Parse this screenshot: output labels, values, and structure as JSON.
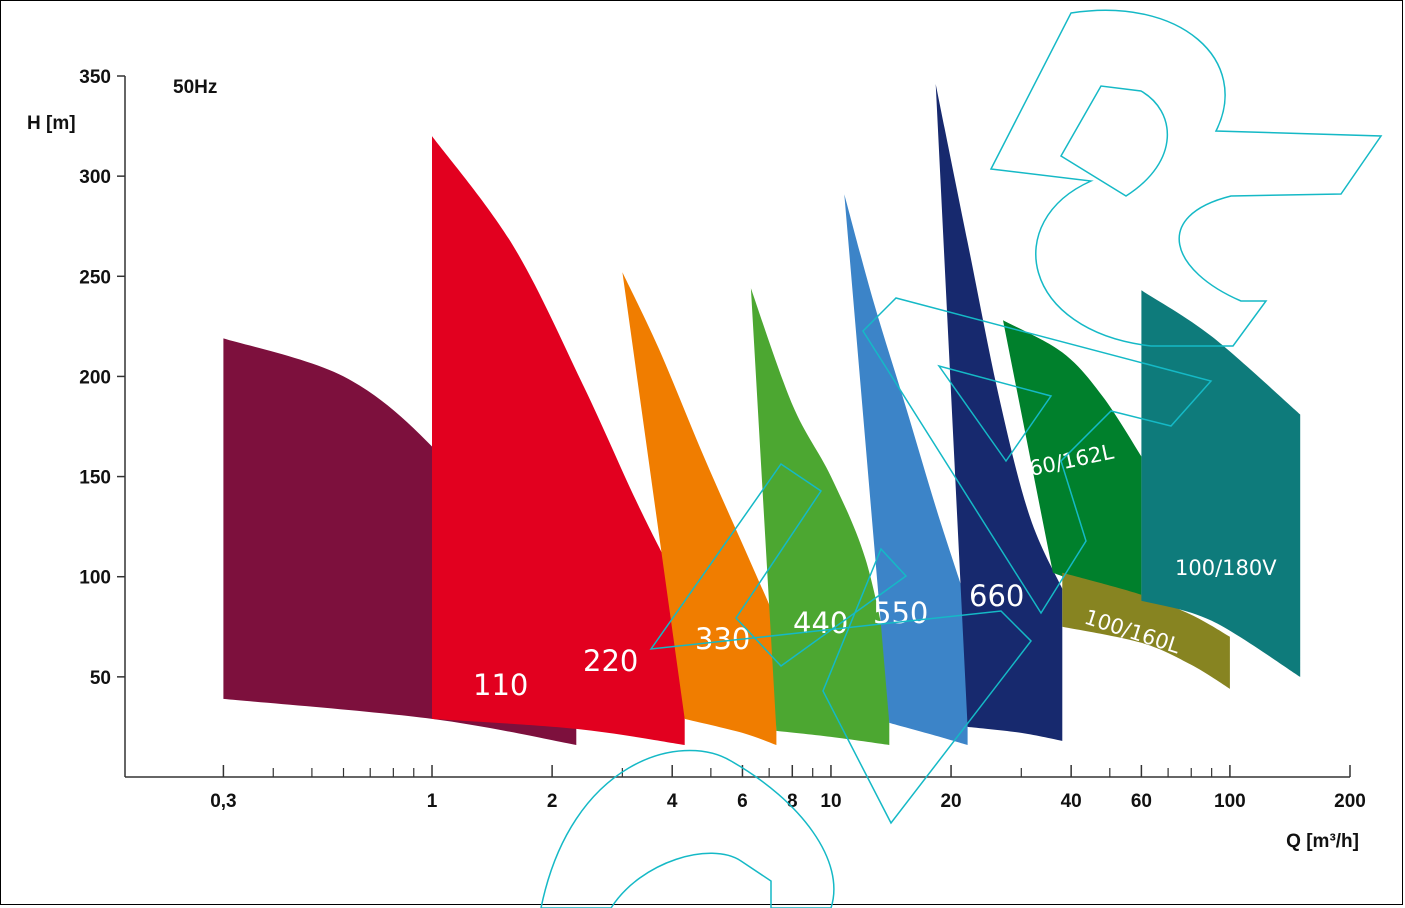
{
  "chart_data": {
    "type": "area",
    "title": "",
    "annotation": "50Hz",
    "xlabel": "Q [m³/h]",
    "ylabel": "H [m]",
    "x_scale": "log",
    "xlim": [
      0.17,
      200
    ],
    "ylim": [
      0,
      350
    ],
    "x_tick_labels": [
      {
        "value": 0.3,
        "label": "0,3"
      },
      {
        "value": 1,
        "label": "1"
      },
      {
        "value": 2,
        "label": "2"
      },
      {
        "value": 4,
        "label": "4"
      },
      {
        "value": 6,
        "label": "6"
      },
      {
        "value": 8,
        "label": "8"
      },
      {
        "value": 10,
        "label": "10"
      },
      {
        "value": 20,
        "label": "20"
      },
      {
        "value": 40,
        "label": "40"
      },
      {
        "value": 60,
        "label": "60"
      },
      {
        "value": 100,
        "label": "100"
      },
      {
        "value": 200,
        "label": "200"
      }
    ],
    "x_minor_ticks": [
      0.4,
      0.5,
      0.6,
      0.7,
      0.8,
      0.9,
      3,
      5,
      7,
      9,
      30,
      50,
      70,
      80,
      90
    ],
    "y_ticks": [
      50,
      100,
      150,
      200,
      250,
      300,
      350
    ],
    "grid": false,
    "series": [
      {
        "name": "110",
        "color": "#7d103d",
        "upper": [
          [
            0.3,
            219
          ],
          [
            0.6,
            200
          ],
          [
            1.0,
            165
          ],
          [
            1.5,
            118
          ],
          [
            2.3,
            87
          ]
        ],
        "lower": [
          [
            0.3,
            39
          ],
          [
            1.0,
            29
          ],
          [
            2.3,
            16
          ]
        ]
      },
      {
        "name": "220",
        "color": "#e2001f",
        "upper": [
          [
            1.0,
            320
          ],
          [
            1.6,
            265
          ],
          [
            2.4,
            195
          ],
          [
            3.3,
            135
          ],
          [
            4.3,
            90
          ]
        ],
        "lower": [
          [
            1.0,
            29
          ],
          [
            2.3,
            24
          ],
          [
            4.3,
            16
          ]
        ]
      },
      {
        "name": "330",
        "color": "#f07d00",
        "upper": [
          [
            3.0,
            252
          ],
          [
            3.7,
            214
          ],
          [
            4.8,
            160
          ],
          [
            6.2,
            110
          ],
          [
            7.3,
            78
          ]
        ],
        "lower": [
          [
            4.3,
            29
          ],
          [
            6.0,
            22
          ],
          [
            7.3,
            16
          ]
        ]
      },
      {
        "name": "440",
        "color": "#4ca731",
        "upper": [
          [
            6.3,
            244
          ],
          [
            8.0,
            186
          ],
          [
            10.0,
            150
          ],
          [
            12.2,
            109
          ],
          [
            14.0,
            57
          ]
        ],
        "lower": [
          [
            7.3,
            23
          ],
          [
            10.0,
            20
          ],
          [
            14.0,
            16
          ]
        ]
      },
      {
        "name": "550",
        "color": "#3c84c8",
        "upper": [
          [
            10.8,
            291
          ],
          [
            12.8,
            237
          ],
          [
            15.5,
            183
          ],
          [
            18.5,
            132
          ],
          [
            22.0,
            86
          ]
        ],
        "lower": [
          [
            14.0,
            27
          ],
          [
            18.0,
            21
          ],
          [
            22.0,
            16
          ]
        ]
      },
      {
        "name": "660",
        "color": "#17296e",
        "upper": [
          [
            18.3,
            346
          ],
          [
            22.0,
            267
          ],
          [
            26.5,
            188
          ],
          [
            31.5,
            130
          ],
          [
            38.0,
            94
          ]
        ],
        "lower": [
          [
            22.0,
            25
          ],
          [
            30.0,
            22
          ],
          [
            38.0,
            18
          ]
        ]
      },
      {
        "name": "60/162L",
        "color": "#00802c",
        "upper": [
          [
            27.0,
            228
          ],
          [
            38.0,
            212
          ],
          [
            48.0,
            190
          ],
          [
            60.0,
            160
          ]
        ],
        "lower": [
          [
            36.0,
            102
          ],
          [
            48.0,
            93
          ],
          [
            60.0,
            88
          ]
        ]
      },
      {
        "name": "100/160L",
        "color": "#878421",
        "upper": [
          [
            38.0,
            102
          ],
          [
            60.0,
            91
          ],
          [
            80.0,
            81
          ],
          [
            100.0,
            70
          ]
        ],
        "lower": [
          [
            38.0,
            75
          ],
          [
            60.0,
            67
          ],
          [
            80.0,
            56
          ],
          [
            100.0,
            44
          ]
        ]
      },
      {
        "name": "100/180V",
        "color": "#0e7b7b",
        "upper": [
          [
            60.0,
            243
          ],
          [
            90.0,
            220
          ],
          [
            150.0,
            181
          ]
        ],
        "lower": [
          [
            60.0,
            88
          ],
          [
            90.0,
            78
          ],
          [
            150.0,
            50
          ]
        ]
      }
    ]
  },
  "colors": {
    "axis": "#333333",
    "watermark": "#15b9c6",
    "background": "#ffffff"
  }
}
